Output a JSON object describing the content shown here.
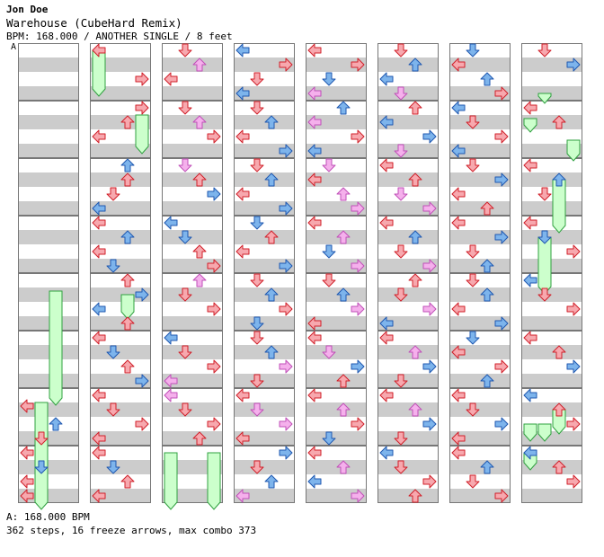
{
  "header": {
    "player": "Jon Doe",
    "song": "Warehouse (CubeHard Remix)",
    "info": "BPM: 168.000 / ANOTHER SINGLE / 8 feet",
    "marker": "A"
  },
  "footer": {
    "bpm": "A: 168.000 BPM",
    "stats": "362 steps, 16 freeze arrows, max combo 373"
  },
  "colors": {
    "band": "#cccccc",
    "border": "#777777",
    "quarter_fill": "#f7a8ae",
    "quarter_stroke": "#d0202a",
    "eighth_fill": "#7db4ec",
    "eighth_stroke": "#2058b0",
    "sixteenth_fill": "#f5b0ec",
    "sixteenth_stroke": "#c050b8",
    "freeze_fill": "#ccffcc",
    "freeze_stroke": "#30a040"
  },
  "chart_data": {
    "type": "stepchart",
    "columns": 8,
    "measures_per_column": 8,
    "lanes": [
      "left",
      "down",
      "up",
      "right"
    ],
    "notes": [
      [
        1,
        6,
        3,
        0,
        "q"
      ],
      [
        1,
        6,
        8,
        2,
        "e"
      ],
      [
        1,
        6,
        12,
        1,
        "q"
      ],
      [
        1,
        7,
        0,
        0,
        "q"
      ],
      [
        1,
        7,
        4,
        1,
        "e"
      ],
      [
        1,
        7,
        8,
        0,
        "q"
      ],
      [
        1,
        7,
        12,
        0,
        "q"
      ],
      [
        2,
        0,
        0,
        0,
        "q"
      ],
      [
        2,
        0,
        8,
        3,
        "q"
      ],
      [
        2,
        1,
        0,
        3,
        "q"
      ],
      [
        2,
        1,
        4,
        2,
        "q"
      ],
      [
        2,
        1,
        8,
        0,
        "q"
      ],
      [
        2,
        2,
        0,
        2,
        "e"
      ],
      [
        2,
        2,
        4,
        2,
        "q"
      ],
      [
        2,
        2,
        8,
        1,
        "q"
      ],
      [
        2,
        2,
        12,
        0,
        "e"
      ],
      [
        2,
        3,
        0,
        0,
        "q"
      ],
      [
        2,
        3,
        4,
        2,
        "e"
      ],
      [
        2,
        3,
        8,
        0,
        "q"
      ],
      [
        2,
        3,
        12,
        1,
        "e"
      ],
      [
        2,
        4,
        0,
        2,
        "q"
      ],
      [
        2,
        4,
        4,
        3,
        "e"
      ],
      [
        2,
        4,
        8,
        0,
        "e"
      ],
      [
        2,
        4,
        12,
        2,
        "q"
      ],
      [
        2,
        5,
        0,
        0,
        "q"
      ],
      [
        2,
        5,
        4,
        1,
        "e"
      ],
      [
        2,
        5,
        8,
        2,
        "q"
      ],
      [
        2,
        5,
        12,
        3,
        "e"
      ],
      [
        2,
        6,
        0,
        0,
        "q"
      ],
      [
        2,
        6,
        4,
        1,
        "q"
      ],
      [
        2,
        6,
        8,
        3,
        "q"
      ],
      [
        2,
        6,
        12,
        0,
        "q"
      ],
      [
        2,
        7,
        0,
        0,
        "q"
      ],
      [
        2,
        7,
        4,
        1,
        "e"
      ],
      [
        2,
        7,
        8,
        2,
        "q"
      ],
      [
        2,
        7,
        12,
        0,
        "q"
      ],
      [
        3,
        0,
        0,
        1,
        "q"
      ],
      [
        3,
        0,
        4,
        2,
        "s"
      ],
      [
        3,
        0,
        8,
        0,
        "q"
      ],
      [
        3,
        1,
        0,
        1,
        "q"
      ],
      [
        3,
        1,
        4,
        2,
        "s"
      ],
      [
        3,
        1,
        8,
        3,
        "q"
      ],
      [
        3,
        2,
        0,
        1,
        "s"
      ],
      [
        3,
        2,
        4,
        2,
        "q"
      ],
      [
        3,
        2,
        8,
        3,
        "e"
      ],
      [
        3,
        3,
        0,
        0,
        "e"
      ],
      [
        3,
        3,
        4,
        1,
        "e"
      ],
      [
        3,
        3,
        8,
        2,
        "q"
      ],
      [
        3,
        3,
        12,
        3,
        "q"
      ],
      [
        3,
        4,
        0,
        2,
        "s"
      ],
      [
        3,
        4,
        4,
        1,
        "q"
      ],
      [
        3,
        4,
        8,
        3,
        "q"
      ],
      [
        3,
        5,
        0,
        0,
        "e"
      ],
      [
        3,
        5,
        4,
        1,
        "q"
      ],
      [
        3,
        5,
        8,
        3,
        "q"
      ],
      [
        3,
        5,
        12,
        0,
        "s"
      ],
      [
        3,
        6,
        0,
        0,
        "s"
      ],
      [
        3,
        6,
        4,
        1,
        "q"
      ],
      [
        3,
        6,
        8,
        3,
        "q"
      ],
      [
        3,
        6,
        12,
        2,
        "q"
      ],
      [
        4,
        0,
        0,
        0,
        "e"
      ],
      [
        4,
        0,
        4,
        3,
        "q"
      ],
      [
        4,
        0,
        8,
        1,
        "q"
      ],
      [
        4,
        0,
        12,
        0,
        "e"
      ],
      [
        4,
        1,
        0,
        1,
        "q"
      ],
      [
        4,
        1,
        4,
        2,
        "e"
      ],
      [
        4,
        1,
        8,
        0,
        "q"
      ],
      [
        4,
        1,
        12,
        3,
        "e"
      ],
      [
        4,
        2,
        0,
        1,
        "q"
      ],
      [
        4,
        2,
        4,
        2,
        "e"
      ],
      [
        4,
        2,
        8,
        0,
        "q"
      ],
      [
        4,
        2,
        12,
        3,
        "e"
      ],
      [
        4,
        3,
        0,
        1,
        "e"
      ],
      [
        4,
        3,
        4,
        2,
        "q"
      ],
      [
        4,
        3,
        8,
        0,
        "q"
      ],
      [
        4,
        3,
        12,
        3,
        "e"
      ],
      [
        4,
        4,
        0,
        1,
        "q"
      ],
      [
        4,
        4,
        4,
        2,
        "e"
      ],
      [
        4,
        4,
        8,
        3,
        "q"
      ],
      [
        4,
        4,
        12,
        1,
        "e"
      ],
      [
        4,
        5,
        0,
        1,
        "q"
      ],
      [
        4,
        5,
        4,
        2,
        "e"
      ],
      [
        4,
        5,
        8,
        3,
        "s"
      ],
      [
        4,
        5,
        12,
        1,
        "q"
      ],
      [
        4,
        6,
        0,
        0,
        "q"
      ],
      [
        4,
        6,
        4,
        1,
        "s"
      ],
      [
        4,
        6,
        8,
        3,
        "s"
      ],
      [
        4,
        6,
        12,
        0,
        "q"
      ],
      [
        4,
        7,
        0,
        3,
        "e"
      ],
      [
        4,
        7,
        4,
        1,
        "q"
      ],
      [
        4,
        7,
        8,
        2,
        "e"
      ],
      [
        4,
        7,
        12,
        0,
        "s"
      ],
      [
        5,
        0,
        0,
        0,
        "q"
      ],
      [
        5,
        0,
        4,
        3,
        "q"
      ],
      [
        5,
        0,
        8,
        1,
        "e"
      ],
      [
        5,
        0,
        12,
        0,
        "s"
      ],
      [
        5,
        1,
        0,
        2,
        "e"
      ],
      [
        5,
        1,
        4,
        0,
        "s"
      ],
      [
        5,
        1,
        8,
        3,
        "q"
      ],
      [
        5,
        1,
        12,
        0,
        "e"
      ],
      [
        5,
        2,
        0,
        1,
        "s"
      ],
      [
        5,
        2,
        4,
        0,
        "q"
      ],
      [
        5,
        2,
        8,
        2,
        "s"
      ],
      [
        5,
        2,
        12,
        3,
        "s"
      ],
      [
        5,
        3,
        0,
        0,
        "q"
      ],
      [
        5,
        3,
        4,
        2,
        "s"
      ],
      [
        5,
        3,
        8,
        1,
        "e"
      ],
      [
        5,
        3,
        12,
        3,
        "s"
      ],
      [
        5,
        4,
        0,
        1,
        "q"
      ],
      [
        5,
        4,
        4,
        2,
        "e"
      ],
      [
        5,
        4,
        8,
        3,
        "s"
      ],
      [
        5,
        4,
        12,
        0,
        "q"
      ],
      [
        5,
        5,
        0,
        0,
        "q"
      ],
      [
        5,
        5,
        4,
        1,
        "s"
      ],
      [
        5,
        5,
        8,
        3,
        "e"
      ],
      [
        5,
        5,
        12,
        2,
        "q"
      ],
      [
        5,
        6,
        0,
        0,
        "q"
      ],
      [
        5,
        6,
        4,
        2,
        "s"
      ],
      [
        5,
        6,
        8,
        3,
        "q"
      ],
      [
        5,
        6,
        12,
        1,
        "e"
      ],
      [
        5,
        7,
        0,
        0,
        "q"
      ],
      [
        5,
        7,
        4,
        2,
        "s"
      ],
      [
        5,
        7,
        8,
        0,
        "e"
      ],
      [
        5,
        7,
        12,
        3,
        "s"
      ],
      [
        6,
        0,
        0,
        1,
        "q"
      ],
      [
        6,
        0,
        4,
        2,
        "e"
      ],
      [
        6,
        0,
        8,
        0,
        "e"
      ],
      [
        6,
        0,
        12,
        1,
        "s"
      ],
      [
        6,
        1,
        0,
        2,
        "q"
      ],
      [
        6,
        1,
        4,
        0,
        "e"
      ],
      [
        6,
        1,
        8,
        3,
        "e"
      ],
      [
        6,
        1,
        12,
        1,
        "s"
      ],
      [
        6,
        2,
        0,
        0,
        "q"
      ],
      [
        6,
        2,
        4,
        2,
        "q"
      ],
      [
        6,
        2,
        8,
        1,
        "s"
      ],
      [
        6,
        2,
        12,
        3,
        "s"
      ],
      [
        6,
        3,
        0,
        0,
        "q"
      ],
      [
        6,
        3,
        4,
        2,
        "e"
      ],
      [
        6,
        3,
        8,
        1,
        "q"
      ],
      [
        6,
        3,
        12,
        3,
        "s"
      ],
      [
        6,
        4,
        0,
        2,
        "q"
      ],
      [
        6,
        4,
        4,
        1,
        "q"
      ],
      [
        6,
        4,
        8,
        3,
        "s"
      ],
      [
        6,
        4,
        12,
        0,
        "e"
      ],
      [
        6,
        5,
        0,
        0,
        "q"
      ],
      [
        6,
        5,
        4,
        2,
        "s"
      ],
      [
        6,
        5,
        8,
        3,
        "e"
      ],
      [
        6,
        5,
        12,
        1,
        "q"
      ],
      [
        6,
        6,
        0,
        0,
        "q"
      ],
      [
        6,
        6,
        4,
        2,
        "s"
      ],
      [
        6,
        6,
        8,
        3,
        "e"
      ],
      [
        6,
        6,
        12,
        1,
        "q"
      ],
      [
        6,
        7,
        0,
        0,
        "e"
      ],
      [
        6,
        7,
        4,
        1,
        "q"
      ],
      [
        6,
        7,
        8,
        3,
        "q"
      ],
      [
        6,
        7,
        12,
        2,
        "q"
      ],
      [
        7,
        0,
        0,
        1,
        "e"
      ],
      [
        7,
        0,
        4,
        0,
        "q"
      ],
      [
        7,
        0,
        8,
        2,
        "e"
      ],
      [
        7,
        0,
        12,
        3,
        "q"
      ],
      [
        7,
        1,
        0,
        0,
        "e"
      ],
      [
        7,
        1,
        4,
        1,
        "q"
      ],
      [
        7,
        1,
        8,
        3,
        "q"
      ],
      [
        7,
        1,
        12,
        0,
        "e"
      ],
      [
        7,
        2,
        0,
        1,
        "q"
      ],
      [
        7,
        2,
        4,
        3,
        "e"
      ],
      [
        7,
        2,
        8,
        0,
        "q"
      ],
      [
        7,
        2,
        12,
        2,
        "q"
      ],
      [
        7,
        3,
        0,
        0,
        "q"
      ],
      [
        7,
        3,
        4,
        3,
        "e"
      ],
      [
        7,
        3,
        8,
        1,
        "q"
      ],
      [
        7,
        3,
        12,
        2,
        "e"
      ],
      [
        7,
        4,
        0,
        1,
        "q"
      ],
      [
        7,
        4,
        4,
        2,
        "e"
      ],
      [
        7,
        4,
        8,
        0,
        "q"
      ],
      [
        7,
        4,
        12,
        3,
        "e"
      ],
      [
        7,
        5,
        0,
        1,
        "e"
      ],
      [
        7,
        5,
        4,
        0,
        "q"
      ],
      [
        7,
        5,
        8,
        3,
        "q"
      ],
      [
        7,
        5,
        12,
        2,
        "e"
      ],
      [
        7,
        6,
        0,
        0,
        "q"
      ],
      [
        7,
        6,
        4,
        1,
        "q"
      ],
      [
        7,
        6,
        8,
        3,
        "e"
      ],
      [
        7,
        6,
        12,
        0,
        "q"
      ],
      [
        7,
        7,
        0,
        0,
        "q"
      ],
      [
        7,
        7,
        4,
        2,
        "e"
      ],
      [
        7,
        7,
        8,
        1,
        "q"
      ],
      [
        7,
        7,
        12,
        3,
        "q"
      ],
      [
        8,
        0,
        0,
        1,
        "q"
      ],
      [
        8,
        0,
        4,
        3,
        "e"
      ],
      [
        8,
        1,
        0,
        0,
        "q"
      ],
      [
        8,
        1,
        4,
        2,
        "q"
      ],
      [
        8,
        2,
        0,
        0,
        "q"
      ],
      [
        8,
        2,
        4,
        2,
        "e"
      ],
      [
        8,
        2,
        8,
        1,
        "q"
      ],
      [
        8,
        3,
        0,
        0,
        "q"
      ],
      [
        8,
        3,
        4,
        1,
        "e"
      ],
      [
        8,
        3,
        8,
        3,
        "q"
      ],
      [
        8,
        4,
        0,
        0,
        "e"
      ],
      [
        8,
        4,
        4,
        1,
        "q"
      ],
      [
        8,
        4,
        8,
        3,
        "q"
      ],
      [
        8,
        5,
        0,
        0,
        "q"
      ],
      [
        8,
        5,
        4,
        2,
        "q"
      ],
      [
        8,
        5,
        8,
        3,
        "e"
      ],
      [
        8,
        6,
        0,
        0,
        "e"
      ],
      [
        8,
        6,
        4,
        2,
        "q"
      ],
      [
        8,
        6,
        8,
        3,
        "q"
      ],
      [
        8,
        7,
        0,
        0,
        "e"
      ],
      [
        8,
        7,
        4,
        2,
        "q"
      ],
      [
        8,
        7,
        8,
        3,
        "q"
      ]
    ],
    "freezes": [
      [
        1,
        4,
        3,
        6,
        2,
        2
      ],
      [
        1,
        6,
        2,
        7,
        15,
        1
      ],
      [
        2,
        0,
        0,
        0,
        12,
        0
      ],
      [
        2,
        1,
        2,
        1,
        12,
        3
      ],
      [
        2,
        4,
        4,
        4,
        10,
        2
      ],
      [
        3,
        7,
        0,
        7,
        15,
        0
      ],
      [
        3,
        7,
        0,
        7,
        15,
        3
      ],
      [
        8,
        0,
        12,
        0,
        14,
        1
      ],
      [
        8,
        1,
        3,
        1,
        6,
        0
      ],
      [
        8,
        1,
        9,
        1,
        14,
        3
      ],
      [
        8,
        2,
        4,
        3,
        2,
        2
      ],
      [
        8,
        3,
        4,
        4,
        3,
        1
      ],
      [
        8,
        6,
        8,
        6,
        12,
        0
      ],
      [
        8,
        6,
        8,
        6,
        12,
        1
      ],
      [
        8,
        6,
        4,
        6,
        10,
        2
      ],
      [
        8,
        7,
        0,
        7,
        4,
        0
      ]
    ]
  }
}
